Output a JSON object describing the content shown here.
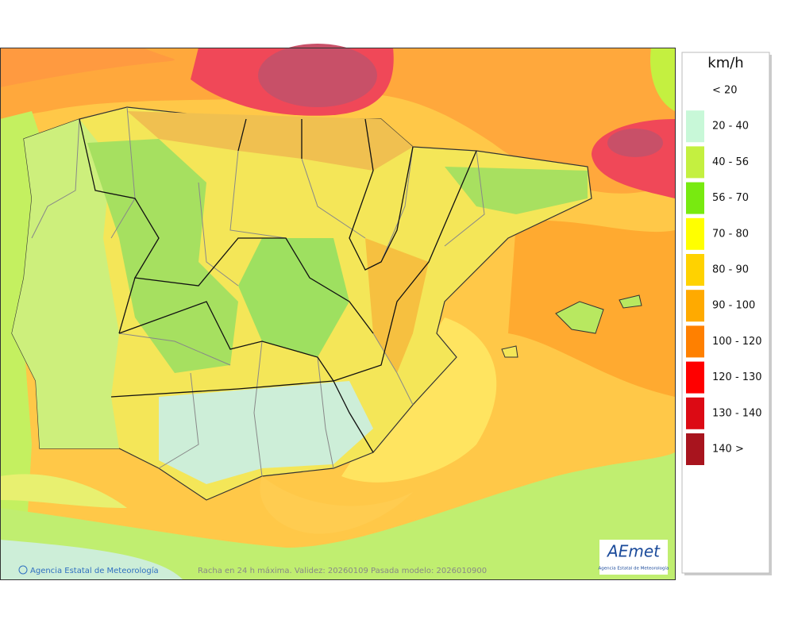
{
  "legend": {
    "title": "km/h",
    "items": [
      {
        "label": "< 20"
      },
      {
        "label": "20 - 40",
        "color": "#c8f8d8"
      },
      {
        "label": "40 - 56",
        "color": "#c4f040"
      },
      {
        "label": "56 - 70",
        "color": "#78ea10"
      },
      {
        "label": "70 - 80",
        "color": "#ffff00"
      },
      {
        "label": "80 - 90",
        "color": "#ffd200"
      },
      {
        "label": "90 - 100",
        "color": "#ffaa00"
      },
      {
        "label": "100 - 120",
        "color": "#ff8000"
      },
      {
        "label": "120 - 130",
        "color": "#ff0000"
      },
      {
        "label": "130 - 140",
        "color": "#dc0a14"
      },
      {
        "label": "140 >",
        "color": "#a8141e"
      }
    ]
  },
  "footer": {
    "credit": "Agencia Estatal de Meteorología",
    "caption": "Racha en 24 h máxima. Validez: 20260109 Pasada modelo: 2026010900"
  },
  "logo": {
    "name": "AEmet",
    "subtitle": "Agencia Estatal de Meteorología"
  }
}
